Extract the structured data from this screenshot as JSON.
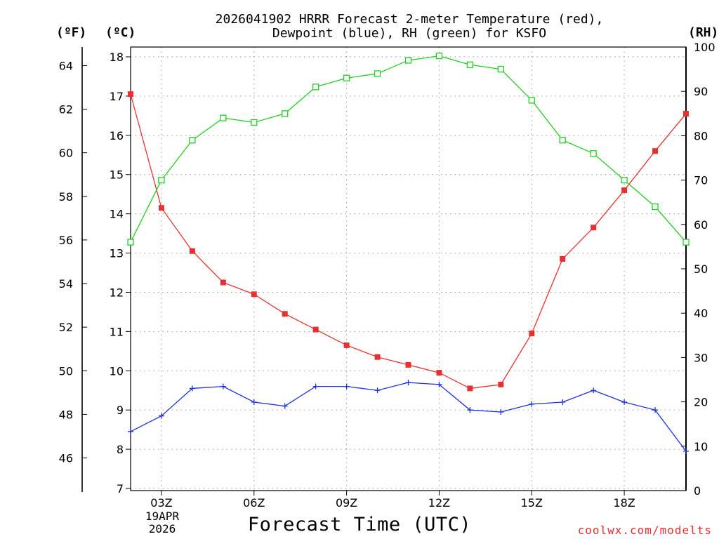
{
  "title": {
    "line1": "2026041902 HRRR Forecast 2-meter Temperature (red),",
    "line2": "Dewpoint (blue), RH (green) for KSFO"
  },
  "axis_units": {
    "fahrenheit": "(ºF)",
    "celsius": "(ºC)",
    "rh": "(RH)"
  },
  "xlabel": "Forecast Time (UTC)",
  "credit": "coolwx.com/modelts",
  "date_label": {
    "day": "19APR",
    "year": "2026"
  },
  "colors": {
    "temperature": "#e83030",
    "dewpoint": "#2030e0",
    "rh": "#20d020",
    "grid": "#9a9a9a",
    "credit": "#e03030"
  },
  "chart_data": {
    "type": "line",
    "x": [
      2,
      3,
      4,
      5,
      6,
      7,
      8,
      9,
      10,
      11,
      12,
      13,
      14,
      15,
      16,
      17,
      18,
      19,
      20
    ],
    "xlim": [
      2,
      20
    ],
    "x_ticks": [
      3,
      6,
      9,
      12,
      15,
      18
    ],
    "x_tick_labels": [
      "03Z",
      "06Z",
      "09Z",
      "12Z",
      "15Z",
      "18Z"
    ],
    "series": [
      {
        "name": "Temperature",
        "axis": "celsius",
        "marker": "filled-square",
        "color": "#e83030",
        "values": [
          17.05,
          14.15,
          13.05,
          12.25,
          11.95,
          11.45,
          11.05,
          10.65,
          10.35,
          10.15,
          9.95,
          9.55,
          9.65,
          10.95,
          12.85,
          13.65,
          14.6,
          15.6,
          16.55
        ]
      },
      {
        "name": "Dewpoint",
        "axis": "celsius",
        "marker": "plus",
        "color": "#2030e0",
        "values": [
          8.45,
          8.85,
          9.55,
          9.6,
          9.2,
          9.1,
          9.6,
          9.6,
          9.5,
          9.7,
          9.65,
          9.0,
          8.95,
          9.15,
          9.2,
          9.5,
          9.2,
          9.0,
          7.95
        ]
      },
      {
        "name": "RH",
        "axis": "rh",
        "marker": "open-square",
        "color": "#20d020",
        "values": [
          56,
          70,
          79,
          84,
          83,
          85,
          91,
          93,
          94,
          97,
          98,
          96,
          95,
          88,
          79,
          76,
          70,
          64,
          56
        ]
      }
    ],
    "celsius_axis": {
      "range": [
        7,
        18.3
      ],
      "ticks": [
        7,
        8,
        9,
        10,
        11,
        12,
        13,
        14,
        15,
        16,
        17,
        18
      ]
    },
    "fahrenheit_axis": {
      "ticks": [
        46,
        48,
        50,
        52,
        54,
        56,
        58,
        60,
        62,
        64
      ]
    },
    "rh_axis": {
      "range": [
        0,
        100
      ],
      "ticks": [
        0,
        10,
        20,
        30,
        40,
        50,
        60,
        70,
        80,
        90,
        100
      ]
    },
    "grid": true
  }
}
